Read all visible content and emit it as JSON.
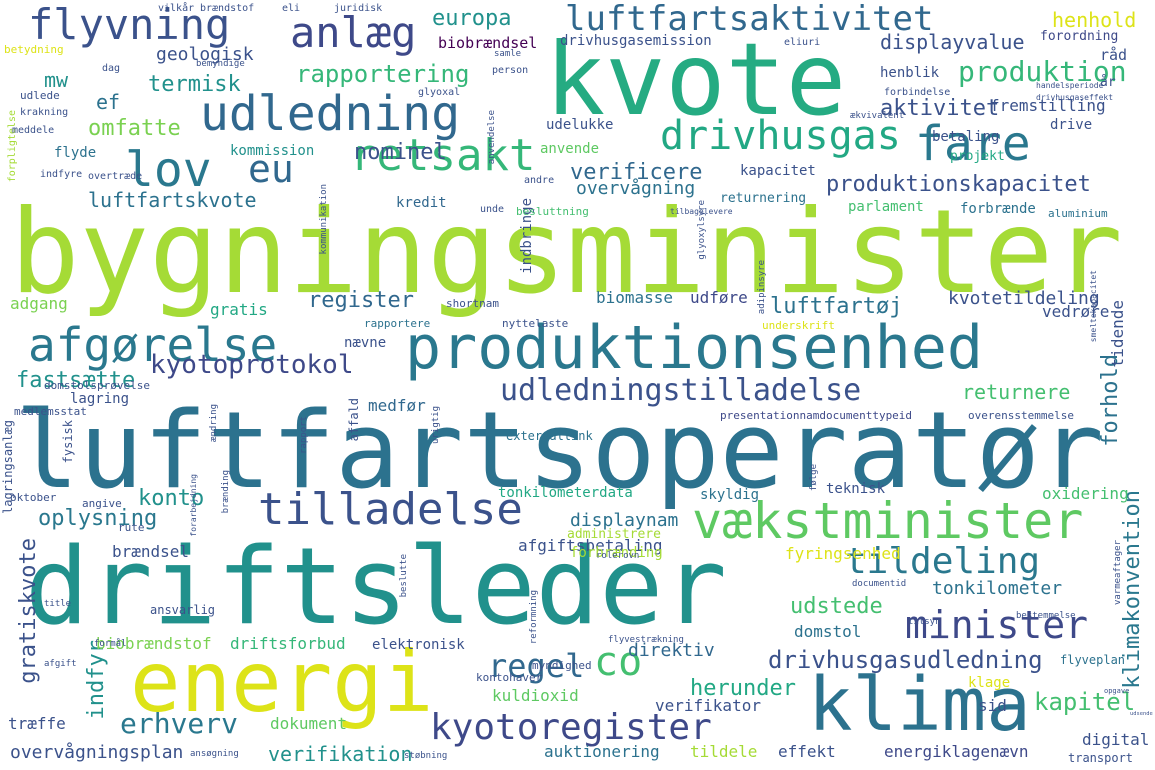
{
  "words": [
    {
      "text": "bygningsminister",
      "color": "#a5db36"
    },
    {
      "text": "luftfartsoperatør",
      "color": "#2c728e"
    },
    {
      "text": "driftsleder",
      "color": "#21918c"
    },
    {
      "text": "kvote",
      "color": "#25ab82"
    },
    {
      "text": "produktionsenhed",
      "color": "#2a788e"
    },
    {
      "text": "energi",
      "color": "#dde318"
    },
    {
      "text": "klima",
      "color": "#2c728e"
    },
    {
      "text": "vækstminister",
      "color": "#5ec962"
    },
    {
      "text": "udledning",
      "color": "#31688e"
    },
    {
      "text": "flyvning",
      "color": "#3b528b"
    },
    {
      "text": "luftfartsaktivitet",
      "color": "#31688e"
    },
    {
      "text": "afgørelse",
      "color": "#2a788e"
    },
    {
      "text": "minister",
      "color": "#3e4989"
    },
    {
      "text": "tildeling",
      "color": "#2a788e"
    },
    {
      "text": "tilladelse",
      "color": "#3b528b"
    },
    {
      "text": "drivhusgas",
      "color": "#22a884"
    },
    {
      "text": "fare",
      "color": "#2a788e"
    },
    {
      "text": "lov",
      "color": "#2a788e"
    },
    {
      "text": "eu",
      "color": "#31688e"
    },
    {
      "text": "retsakt",
      "color": "#35b779"
    },
    {
      "text": "anlæg",
      "color": "#3e4989"
    },
    {
      "text": "kyotoregister",
      "color": "#3e4989"
    },
    {
      "text": "co",
      "color": "#44bf70"
    },
    {
      "text": "udledningstilladelse",
      "color": "#3b528b"
    },
    {
      "text": "produktion",
      "color": "#35b779"
    },
    {
      "text": "regel",
      "color": "#31688e"
    },
    {
      "text": "erhverv",
      "color": "#2a788e"
    },
    {
      "text": "kyotoprotokol",
      "color": "#3e4989"
    },
    {
      "text": "drivhusgasudledning",
      "color": "#3b528b"
    },
    {
      "text": "produktionskapacitet",
      "color": "#3b528b"
    },
    {
      "text": "europa",
      "color": "#21918c"
    },
    {
      "text": "rapportering",
      "color": "#35b779"
    },
    {
      "text": "konto",
      "color": "#21918c"
    },
    {
      "text": "fastsætte",
      "color": "#21918c"
    },
    {
      "text": "oplysning",
      "color": "#2a788e"
    },
    {
      "text": "gratiskvote",
      "color": "#3b528b"
    },
    {
      "text": "indfyr",
      "color": "#21918c"
    },
    {
      "text": "kapitel",
      "color": "#44bf70"
    },
    {
      "text": "herunder",
      "color": "#22a884"
    },
    {
      "text": "udstede",
      "color": "#44bf70"
    },
    {
      "text": "forhold",
      "color": "#2c728e"
    },
    {
      "text": "klimakonvention",
      "color": "#2a788e"
    },
    {
      "text": "register",
      "color": "#31688e"
    },
    {
      "text": "verificere",
      "color": "#31688e"
    },
    {
      "text": "nominel",
      "color": "#3b528b"
    },
    {
      "text": "luftfartskvote",
      "color": "#2c728e"
    },
    {
      "text": "termisk",
      "color": "#21918c"
    },
    {
      "text": "omfatte",
      "color": "#7ad151"
    },
    {
      "text": "aktivitet",
      "color": "#3b528b"
    },
    {
      "text": "henhold",
      "color": "#dde318"
    },
    {
      "text": "displayvalue",
      "color": "#3b528b"
    },
    {
      "text": "verifikation",
      "color": "#21918c"
    },
    {
      "text": "luftfartøj",
      "color": "#2c728e"
    },
    {
      "text": "returnere",
      "color": "#44bf70"
    },
    {
      "text": "displaynam",
      "color": "#2c728e"
    },
    {
      "text": "ef",
      "color": "#2c728e"
    },
    {
      "text": "mw",
      "color": "#21918c"
    },
    {
      "text": "overvågning",
      "color": "#2c728e"
    },
    {
      "text": "tonkilometer",
      "color": "#2c728e"
    },
    {
      "text": "direktiv",
      "color": "#31688e"
    },
    {
      "text": "fremstilling",
      "color": "#3b528b"
    },
    {
      "text": "kvotetildeling",
      "color": "#3b528b"
    },
    {
      "text": "overvågningsplan",
      "color": "#3b528b"
    },
    {
      "text": "geologisk",
      "color": "#3b528b"
    },
    {
      "text": "biobrændsel",
      "color": "#440154"
    },
    {
      "text": "drivhusgasemission",
      "color": "#3b528b"
    },
    {
      "text": "forordning",
      "color": "#3e4989"
    },
    {
      "text": "henblik",
      "color": "#3b528b"
    },
    {
      "text": "råd",
      "color": "#3b528b"
    },
    {
      "text": "år",
      "color": "#3b528b"
    },
    {
      "text": "kommission",
      "color": "#21918c"
    },
    {
      "text": "udelukke",
      "color": "#3b528b"
    },
    {
      "text": "anvende",
      "color": "#5ec962"
    },
    {
      "text": "flyde",
      "color": "#2c728e"
    },
    {
      "text": "indbringe",
      "color": "#3b528b"
    },
    {
      "text": "kapacitet",
      "color": "#3b528b"
    },
    {
      "text": "kredit",
      "color": "#31688e"
    },
    {
      "text": "returnering",
      "color": "#2c728e"
    },
    {
      "text": "forbrænde",
      "color": "#2c728e"
    },
    {
      "text": "parlament",
      "color": "#44bf70"
    },
    {
      "text": "betaling",
      "color": "#3b528b"
    },
    {
      "text": "projekt",
      "color": "#22a884"
    },
    {
      "text": "drive",
      "color": "#3b528b"
    },
    {
      "text": "biomasse",
      "color": "#2c728e"
    },
    {
      "text": "udføre",
      "color": "#3e4989"
    },
    {
      "text": "gratis",
      "color": "#22a884"
    },
    {
      "text": "adgang",
      "color": "#7ad151"
    },
    {
      "text": "vedrøre",
      "color": "#3b528b"
    },
    {
      "text": "tidende",
      "color": "#3b528b"
    },
    {
      "text": "nævne",
      "color": "#3b528b"
    },
    {
      "text": "lagring",
      "color": "#3b528b"
    },
    {
      "text": "medfør",
      "color": "#31688e"
    },
    {
      "text": "afgiftsbetaling",
      "color": "#3b528b"
    },
    {
      "text": "administrere",
      "color": "#a5db36"
    },
    {
      "text": "forbrænding",
      "color": "#a5db36"
    },
    {
      "text": "fyringsenhed",
      "color": "#dde318"
    },
    {
      "text": "oxidering",
      "color": "#44bf70"
    },
    {
      "text": "tonkilometerdata",
      "color": "#22a884"
    },
    {
      "text": "teknisk",
      "color": "#3b528b"
    },
    {
      "text": "skyldig",
      "color": "#2c728e"
    },
    {
      "text": "brændsel",
      "color": "#3b528b"
    },
    {
      "text": "domstol",
      "color": "#2c728e"
    },
    {
      "text": "biobrændstof",
      "color": "#7ad151"
    },
    {
      "text": "driftsforbud",
      "color": "#35b779"
    },
    {
      "text": "elektronisk",
      "color": "#3b528b"
    },
    {
      "text": "kuldioxid",
      "color": "#5ec962"
    },
    {
      "text": "verifikator",
      "color": "#3b528b"
    },
    {
      "text": "klage",
      "color": "#dde318"
    },
    {
      "text": "sid",
      "color": "#3b528b"
    },
    {
      "text": "digital",
      "color": "#3b528b"
    },
    {
      "text": "træffe",
      "color": "#3b528b"
    },
    {
      "text": "dokument",
      "color": "#5ec962"
    },
    {
      "text": "auktionering",
      "color": "#2c728e"
    },
    {
      "text": "tildele",
      "color": "#a5db36"
    },
    {
      "text": "effekt",
      "color": "#3b528b"
    },
    {
      "text": "energiklagenævn",
      "color": "#3e4989"
    },
    {
      "text": "transport",
      "color": "#3b528b"
    },
    {
      "text": "flyveplan",
      "color": "#2c728e"
    },
    {
      "text": "ansvarlig",
      "color": "#3b528b"
    },
    {
      "text": "kontohaver",
      "color": "#3b528b"
    },
    {
      "text": "myndighed",
      "color": "#3b528b"
    },
    {
      "text": "lagringsanlæg",
      "color": "#3b528b"
    },
    {
      "text": "fysisk",
      "color": "#3b528b"
    },
    {
      "text": "angive",
      "color": "#3b528b"
    },
    {
      "text": "oktober",
      "color": "#3b528b"
    },
    {
      "text": "rute",
      "color": "#3b528b"
    },
    {
      "text": "externallink",
      "color": "#2c728e"
    },
    {
      "text": "presentationnamdocumenttypeid",
      "color": "#3e4989"
    },
    {
      "text": "overensstemmelse",
      "color": "#3b528b"
    },
    {
      "text": "domstolsprøvelse",
      "color": "#3b528b"
    },
    {
      "text": "medlemsstat",
      "color": "#3b528b"
    },
    {
      "text": "affald",
      "color": "#3b528b"
    },
    {
      "text": "rapportere",
      "color": "#2c728e"
    },
    {
      "text": "nyttelaste",
      "color": "#3b528b"
    },
    {
      "text": "shortnam",
      "color": "#3b528b"
    },
    {
      "text": "underskrift",
      "color": "#dde318"
    },
    {
      "text": "besluttning",
      "color": "#44bf70"
    },
    {
      "text": "andre",
      "color": "#3b528b"
    },
    {
      "text": "unde",
      "color": "#3b528b"
    },
    {
      "text": "aluminium",
      "color": "#2c728e"
    },
    {
      "text": "forpligtelse",
      "color": "#a5db36"
    },
    {
      "text": "udlede",
      "color": "#3b528b"
    },
    {
      "text": "krakning",
      "color": "#3b528b"
    },
    {
      "text": "meddele",
      "color": "#3b528b"
    },
    {
      "text": "overtræde",
      "color": "#3b528b"
    },
    {
      "text": "indfyre",
      "color": "#3b528b"
    },
    {
      "text": "betydning",
      "color": "#dde318"
    },
    {
      "text": "brændstof",
      "color": "#3b528b"
    },
    {
      "text": "vilkår",
      "color": "#3b528b"
    },
    {
      "text": "juridisk",
      "color": "#3b528b"
    },
    {
      "text": "eli",
      "color": "#3b528b"
    },
    {
      "text": "eliuri",
      "color": "#3b528b"
    },
    {
      "text": "person",
      "color": "#3b528b"
    },
    {
      "text": "dag",
      "color": "#3b528b"
    },
    {
      "text": "bemyndige",
      "color": "#3b528b"
    },
    {
      "text": "samle",
      "color": "#3b528b"
    },
    {
      "text": "glyoxal",
      "color": "#3b528b"
    },
    {
      "text": "forbindelse",
      "color": "#3b528b"
    },
    {
      "text": "anvendelse",
      "color": "#3b528b"
    },
    {
      "text": "kommunikation",
      "color": "#3b528b"
    },
    {
      "text": "glyoxylsyre",
      "color": "#3b528b"
    },
    {
      "text": "adipinsyre",
      "color": "#3b528b"
    },
    {
      "text": "ækvivalent",
      "color": "#3b528b"
    },
    {
      "text": "handelsperiode",
      "color": "#3b528b"
    },
    {
      "text": "drivhusgaseffekt",
      "color": "#3b528b"
    },
    {
      "text": "smeltekapacitet",
      "color": "#3b528b"
    },
    {
      "text": "rapport",
      "color": "#3b528b"
    },
    {
      "text": "ændring",
      "color": "#3b528b"
    },
    {
      "text": "brænding",
      "color": "#3b528b"
    },
    {
      "text": "forarbejdning",
      "color": "#3b528b"
    },
    {
      "text": "beslutte",
      "color": "#3b528b"
    },
    {
      "text": "urigtig",
      "color": "#3b528b"
    },
    {
      "text": "følge",
      "color": "#3b528b"
    },
    {
      "text": "reformning",
      "color": "#3b528b"
    },
    {
      "text": "documentid",
      "color": "#3b528b"
    },
    {
      "text": "tilsyn",
      "color": "#3b528b"
    },
    {
      "text": "bestemmelse",
      "color": "#3b528b"
    },
    {
      "text": "formål",
      "color": "#3b528b"
    },
    {
      "text": "afgift",
      "color": "#3b528b"
    },
    {
      "text": "støbning",
      "color": "#3b528b"
    },
    {
      "text": "ansøgning",
      "color": "#3b528b"
    },
    {
      "text": "flyvestrækning",
      "color": "#3b528b"
    },
    {
      "text": "varmeaftager",
      "color": "#3b528b"
    },
    {
      "text": "rolerovn",
      "color": "#3b528b"
    },
    {
      "text": "title",
      "color": "#3b528b"
    },
    {
      "text": "tilbagelevere",
      "color": "#3b528b"
    },
    {
      "text": "opgave",
      "color": "#3b528b"
    },
    {
      "text": "udsende",
      "color": "#3b528b"
    }
  ]
}
